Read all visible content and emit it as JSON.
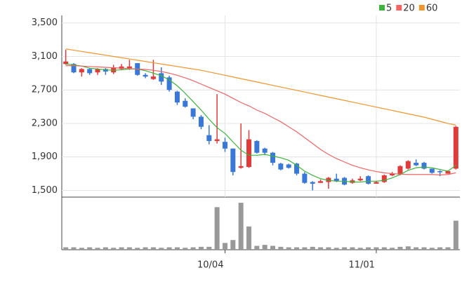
{
  "chart_data": {
    "type": "candlestick",
    "categories": [
      null,
      null,
      null,
      null,
      null,
      null,
      null,
      null,
      null,
      null,
      null,
      null,
      null,
      null,
      null,
      null,
      null,
      null,
      null,
      null,
      "10/04",
      null,
      null,
      null,
      null,
      null,
      null,
      null,
      null,
      null,
      null,
      null,
      null,
      null,
      null,
      null,
      null,
      null,
      null,
      "11/01",
      null,
      null,
      null,
      null,
      null,
      null,
      null,
      null,
      null,
      null
    ],
    "open": [
      3010,
      3010,
      2910,
      2950,
      2910,
      2950,
      2910,
      2950,
      2960,
      3020,
      2880,
      2830,
      2900,
      2850,
      2680,
      2570,
      2480,
      2380,
      2160,
      2090,
      2080,
      2000,
      1770,
      1780,
      2090,
      2000,
      1950,
      1820,
      1810,
      1820,
      1700,
      1600,
      1590,
      1600,
      1640,
      1650,
      1590,
      1620,
      1670,
      1580,
      1600,
      1680,
      1690,
      1760,
      1830,
      1830,
      1760,
      1730,
      1700,
      1760
    ],
    "high": [
      3180,
      3020,
      2960,
      2960,
      2960,
      2960,
      3000,
      3010,
      3060,
      3020,
      2900,
      3060,
      2970,
      2870,
      2690,
      2600,
      2480,
      2400,
      2280,
      2650,
      2130,
      2000,
      2300,
      2220,
      2100,
      2010,
      1960,
      1830,
      1820,
      1830,
      1720,
      1610,
      1630,
      1660,
      1700,
      1660,
      1640,
      1670,
      1680,
      1610,
      1690,
      1720,
      1800,
      1860,
      1870,
      1840,
      1760,
      1740,
      1740,
      2270
    ],
    "low": [
      3000,
      2900,
      2860,
      2880,
      2880,
      2880,
      2890,
      2940,
      2940,
      2870,
      2840,
      2820,
      2760,
      2680,
      2520,
      2490,
      2350,
      2230,
      2050,
      2060,
      1960,
      1680,
      1760,
      1770,
      1940,
      1920,
      1800,
      1740,
      1760,
      1680,
      1580,
      1500,
      1590,
      1520,
      1600,
      1560,
      1580,
      1610,
      1570,
      1580,
      1590,
      1670,
      1680,
      1750,
      1790,
      1750,
      1700,
      1670,
      1700,
      1750
    ],
    "close": [
      3040,
      2910,
      2950,
      2900,
      2950,
      2920,
      2970,
      2980,
      2980,
      2880,
      2860,
      2860,
      2800,
      2700,
      2550,
      2500,
      2380,
      2260,
      2090,
      2110,
      2000,
      1720,
      1790,
      2110,
      1950,
      1950,
      1830,
      1750,
      1770,
      1700,
      1590,
      1580,
      1610,
      1650,
      1610,
      1570,
      1620,
      1640,
      1580,
      1600,
      1680,
      1700,
      1790,
      1850,
      1800,
      1760,
      1710,
      1720,
      1730,
      2260
    ],
    "volume": [
      5,
      5,
      4,
      5,
      4,
      5,
      4,
      5,
      5,
      4,
      5,
      5,
      4,
      5,
      5,
      4,
      5,
      6,
      6,
      88,
      14,
      20,
      97,
      48,
      8,
      10,
      8,
      6,
      5,
      5,
      5,
      6,
      5,
      5,
      4,
      5,
      5,
      4,
      5,
      5,
      5,
      4,
      6,
      7,
      5,
      5,
      4,
      5,
      5,
      60
    ],
    "volume_ylim": [
      0,
      100
    ],
    "up_color": "#e03a3a",
    "down_color": "#3a78d8",
    "volume_color": "#999999",
    "series": [
      {
        "name": "5",
        "color": "#3cb43c",
        "values": [
          3010,
          3000,
          2985,
          2960,
          2950,
          2940,
          2935,
          2940,
          2950,
          2950,
          2930,
          2900,
          2870,
          2820,
          2750,
          2660,
          2560,
          2460,
          2350,
          2250,
          2180,
          2080,
          1980,
          1920,
          1920,
          1930,
          1910,
          1890,
          1860,
          1800,
          1730,
          1680,
          1640,
          1620,
          1610,
          1610,
          1600,
          1600,
          1610,
          1610,
          1620,
          1650,
          1690,
          1740,
          1770,
          1780,
          1770,
          1750,
          1730,
          1800
        ]
      },
      {
        "name": "20",
        "color": "#f06464",
        "values": [
          2990,
          2990,
          2985,
          2980,
          2975,
          2970,
          2965,
          2960,
          2955,
          2950,
          2945,
          2935,
          2920,
          2900,
          2875,
          2845,
          2810,
          2770,
          2730,
          2690,
          2650,
          2600,
          2550,
          2510,
          2460,
          2420,
          2370,
          2320,
          2260,
          2200,
          2130,
          2060,
          1990,
          1930,
          1880,
          1840,
          1800,
          1770,
          1745,
          1725,
          1710,
          1700,
          1695,
          1690,
          1690,
          1690,
          1690,
          1685,
          1690,
          1710
        ]
      },
      {
        "name": "60",
        "color": "#f0962d",
        "values": [
          3190,
          3175,
          3160,
          3145,
          3130,
          3115,
          3100,
          3085,
          3070,
          3055,
          3040,
          3025,
          3010,
          2995,
          2980,
          2965,
          2950,
          2935,
          2915,
          2895,
          2875,
          2855,
          2835,
          2815,
          2795,
          2775,
          2755,
          2735,
          2715,
          2695,
          2675,
          2655,
          2635,
          2615,
          2595,
          2575,
          2555,
          2535,
          2515,
          2495,
          2475,
          2455,
          2435,
          2415,
          2395,
          2375,
          2350,
          2325,
          2300,
          2280
        ]
      }
    ],
    "ylim": [
      1420,
      3590
    ],
    "yticks": [
      {
        "value": 1500,
        "label": "1,500"
      },
      {
        "value": 1900,
        "label": "1,900"
      },
      {
        "value": 2300,
        "label": "2,300"
      },
      {
        "value": 2700,
        "label": "2,700"
      },
      {
        "value": 3100,
        "label": "3,100"
      },
      {
        "value": 3500,
        "label": "3,500"
      }
    ],
    "grid": true
  }
}
